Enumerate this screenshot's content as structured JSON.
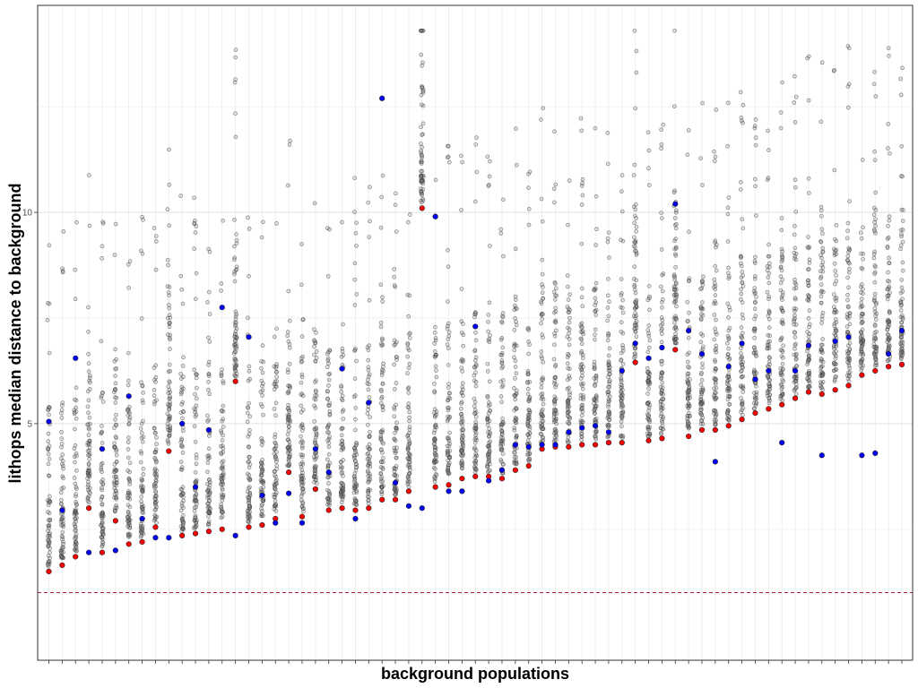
{
  "chart_data": {
    "type": "scatter",
    "title": "",
    "xlabel": "background populations",
    "ylabel": "lithops median distance to background",
    "ylim": [
      -0.6,
      14.9
    ],
    "yticks": [
      5,
      10
    ],
    "ytick_labels": [
      "5",
      "10"
    ],
    "grid": true,
    "legend": "none",
    "reference_line": {
      "y": 1.0,
      "color": "#b2182b",
      "style": "dashed"
    },
    "colors": {
      "background": "#555555",
      "red": "#ff0000",
      "blue": "#0000ff"
    },
    "series": [
      {
        "name": "",
        "color": "#ff0000",
        "points": [
          [
            1,
            1.5
          ],
          [
            2,
            1.65
          ],
          [
            3,
            1.85
          ],
          [
            4,
            3.0
          ],
          [
            5,
            1.95
          ],
          [
            6,
            2.7
          ],
          [
            7,
            2.15
          ],
          [
            8,
            2.2
          ],
          [
            9,
            2.55
          ],
          [
            10,
            4.35
          ],
          [
            11,
            2.35
          ],
          [
            12,
            2.4
          ],
          [
            13,
            2.45
          ],
          [
            14,
            2.5
          ],
          [
            15,
            6.0
          ],
          [
            16,
            2.55
          ],
          [
            17,
            2.6
          ],
          [
            18,
            2.75
          ],
          [
            19,
            3.85
          ],
          [
            20,
            2.8
          ],
          [
            21,
            3.45
          ],
          [
            22,
            2.95
          ],
          [
            23,
            3.0
          ],
          [
            24,
            2.95
          ],
          [
            25,
            3.0
          ],
          [
            26,
            3.2
          ],
          [
            27,
            3.2
          ],
          [
            28,
            3.4
          ],
          [
            29,
            10.1
          ],
          [
            30,
            3.5
          ],
          [
            31,
            3.55
          ],
          [
            32,
            3.7
          ],
          [
            33,
            3.75
          ],
          [
            34,
            3.75
          ],
          [
            35,
            3.7
          ],
          [
            36,
            3.9
          ],
          [
            37,
            4.0
          ],
          [
            38,
            4.4
          ],
          [
            39,
            4.45
          ],
          [
            40,
            4.45
          ],
          [
            41,
            4.5
          ],
          [
            42,
            4.5
          ],
          [
            43,
            4.55
          ],
          [
            44,
            4.55
          ],
          [
            45,
            6.45
          ],
          [
            46,
            4.6
          ],
          [
            47,
            4.65
          ],
          [
            48,
            6.75
          ],
          [
            49,
            4.7
          ],
          [
            50,
            4.85
          ],
          [
            51,
            4.85
          ],
          [
            52,
            4.95
          ],
          [
            53,
            5.1
          ],
          [
            54,
            5.25
          ],
          [
            55,
            5.35
          ],
          [
            56,
            5.45
          ],
          [
            57,
            5.6
          ],
          [
            58,
            5.75
          ],
          [
            59,
            5.7
          ],
          [
            60,
            5.8
          ],
          [
            61,
            5.9
          ],
          [
            62,
            6.15
          ],
          [
            63,
            6.25
          ],
          [
            64,
            6.35
          ],
          [
            65,
            6.4
          ]
        ]
      },
      {
        "name": "",
        "color": "#0000ff",
        "points": [
          [
            1,
            5.05
          ],
          [
            2,
            2.95
          ],
          [
            3,
            6.55
          ],
          [
            4,
            1.95
          ],
          [
            5,
            4.4
          ],
          [
            6,
            2.0
          ],
          [
            7,
            5.65
          ],
          [
            8,
            2.75
          ],
          [
            9,
            2.3
          ],
          [
            10,
            2.3
          ],
          [
            11,
            5.0
          ],
          [
            12,
            3.5
          ],
          [
            13,
            4.85
          ],
          [
            14,
            7.75
          ],
          [
            15,
            2.35
          ],
          [
            16,
            7.05
          ],
          [
            17,
            3.3
          ],
          [
            18,
            2.65
          ],
          [
            19,
            3.35
          ],
          [
            20,
            2.65
          ],
          [
            21,
            4.4
          ],
          [
            22,
            3.85
          ],
          [
            23,
            6.3
          ],
          [
            24,
            2.75
          ],
          [
            25,
            5.5
          ],
          [
            26,
            12.7
          ],
          [
            27,
            3.6
          ],
          [
            28,
            3.05
          ],
          [
            29,
            3.0
          ],
          [
            30,
            9.9
          ],
          [
            31,
            3.4
          ],
          [
            32,
            3.4
          ],
          [
            33,
            7.3
          ],
          [
            34,
            3.65
          ],
          [
            35,
            3.9
          ],
          [
            36,
            4.5
          ],
          [
            37,
            4.45
          ],
          [
            38,
            4.5
          ],
          [
            39,
            4.5
          ],
          [
            40,
            4.8
          ],
          [
            41,
            4.9
          ],
          [
            42,
            4.95
          ],
          [
            43,
            4.8
          ],
          [
            44,
            6.25
          ],
          [
            45,
            6.9
          ],
          [
            46,
            6.55
          ],
          [
            47,
            6.8
          ],
          [
            48,
            10.2
          ],
          [
            49,
            7.2
          ],
          [
            50,
            6.65
          ],
          [
            51,
            4.1
          ],
          [
            52,
            6.35
          ],
          [
            53,
            6.9
          ],
          [
            54,
            6.05
          ],
          [
            55,
            6.25
          ],
          [
            56,
            4.55
          ],
          [
            57,
            6.25
          ],
          [
            58,
            6.85
          ],
          [
            59,
            4.25
          ],
          [
            60,
            6.95
          ],
          [
            61,
            7.05
          ],
          [
            62,
            4.25
          ],
          [
            63,
            4.3
          ],
          [
            64,
            6.65
          ],
          [
            65,
            7.2
          ]
        ]
      }
    ],
    "background_points": {
      "color": "#555555",
      "count_per_group": 65,
      "groups": 65
    }
  }
}
